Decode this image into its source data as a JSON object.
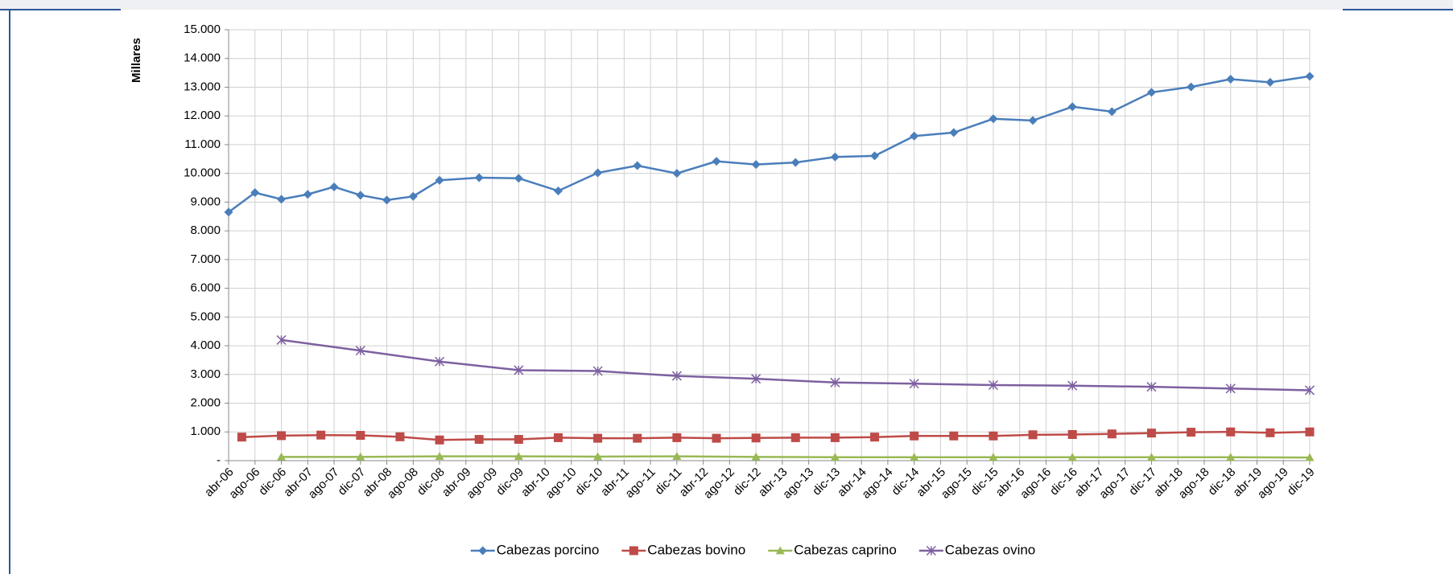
{
  "chart_data": {
    "type": "line",
    "y_label": "Millares",
    "grid": true,
    "legend": "bottom",
    "xlim": [
      "2006-04",
      "2019-12"
    ],
    "xticks": [
      {
        "value": "2006-04",
        "label": "abr-06"
      },
      {
        "value": "2006-08",
        "label": "ago-06"
      },
      {
        "value": "2006-12",
        "label": "dic-06"
      },
      {
        "value": "2007-04",
        "label": "abr-07"
      },
      {
        "value": "2007-08",
        "label": "ago-07"
      },
      {
        "value": "2007-12",
        "label": "dic-07"
      },
      {
        "value": "2008-04",
        "label": "abr-08"
      },
      {
        "value": "2008-08",
        "label": "ago-08"
      },
      {
        "value": "2008-12",
        "label": "dic-08"
      },
      {
        "value": "2009-04",
        "label": "abr-09"
      },
      {
        "value": "2009-08",
        "label": "ago-09"
      },
      {
        "value": "2009-12",
        "label": "dic-09"
      },
      {
        "value": "2010-04",
        "label": "abr-10"
      },
      {
        "value": "2010-08",
        "label": "ago-10"
      },
      {
        "value": "2010-12",
        "label": "dic-10"
      },
      {
        "value": "2011-04",
        "label": "abr-11"
      },
      {
        "value": "2011-08",
        "label": "ago-11"
      },
      {
        "value": "2011-12",
        "label": "dic-11"
      },
      {
        "value": "2012-04",
        "label": "abr-12"
      },
      {
        "value": "2012-08",
        "label": "ago-12"
      },
      {
        "value": "2012-12",
        "label": "dic-12"
      },
      {
        "value": "2013-04",
        "label": "abr-13"
      },
      {
        "value": "2013-08",
        "label": "ago-13"
      },
      {
        "value": "2013-12",
        "label": "dic-13"
      },
      {
        "value": "2014-04",
        "label": "abr-14"
      },
      {
        "value": "2014-08",
        "label": "ago-14"
      },
      {
        "value": "2014-12",
        "label": "dic-14"
      },
      {
        "value": "2015-04",
        "label": "abr-15"
      },
      {
        "value": "2015-08",
        "label": "ago-15"
      },
      {
        "value": "2015-12",
        "label": "dic-15"
      },
      {
        "value": "2016-04",
        "label": "abr-16"
      },
      {
        "value": "2016-08",
        "label": "ago-16"
      },
      {
        "value": "2016-12",
        "label": "dic-16"
      },
      {
        "value": "2017-04",
        "label": "abr-17"
      },
      {
        "value": "2017-08",
        "label": "ago-17"
      },
      {
        "value": "2017-12",
        "label": "dic-17"
      },
      {
        "value": "2018-04",
        "label": "abr-18"
      },
      {
        "value": "2018-08",
        "label": "ago-18"
      },
      {
        "value": "2018-12",
        "label": "dic-18"
      },
      {
        "value": "2019-04",
        "label": "abr-19"
      },
      {
        "value": "2019-08",
        "label": "ago-19"
      },
      {
        "value": "2019-12",
        "label": "dic-19"
      }
    ],
    "ylim": [
      0,
      15000
    ],
    "yticks": [
      {
        "value": 0,
        "label": "-"
      },
      {
        "value": 1000,
        "label": "1.000"
      },
      {
        "value": 2000,
        "label": "2.000"
      },
      {
        "value": 3000,
        "label": "3.000"
      },
      {
        "value": 4000,
        "label": "4.000"
      },
      {
        "value": 5000,
        "label": "5.000"
      },
      {
        "value": 6000,
        "label": "6.000"
      },
      {
        "value": 7000,
        "label": "7.000"
      },
      {
        "value": 8000,
        "label": "8.000"
      },
      {
        "value": 9000,
        "label": "9.000"
      },
      {
        "value": 10000,
        "label": "10.000"
      },
      {
        "value": 11000,
        "label": "11.000"
      },
      {
        "value": 12000,
        "label": "12.000"
      },
      {
        "value": 13000,
        "label": "13.000"
      },
      {
        "value": 14000,
        "label": "14.000"
      },
      {
        "value": 15000,
        "label": "15.000"
      }
    ],
    "series": [
      {
        "name": "Cabezas porcino",
        "color": "#4a7ebb",
        "marker": "diamond",
        "x": [
          "2006-04",
          "2006-08",
          "2006-12",
          "2007-04",
          "2007-08",
          "2007-12",
          "2008-04",
          "2008-08",
          "2008-12",
          "2009-06",
          "2009-12",
          "2010-06",
          "2010-12",
          "2011-06",
          "2011-12",
          "2012-06",
          "2012-12",
          "2013-06",
          "2013-12",
          "2014-06",
          "2014-12",
          "2015-06",
          "2015-12",
          "2016-06",
          "2016-12",
          "2017-06",
          "2017-12",
          "2018-06",
          "2018-12",
          "2019-06",
          "2019-12"
        ],
        "values": [
          8650,
          9330,
          9100,
          9270,
          9530,
          9240,
          9070,
          9200,
          9760,
          9850,
          9830,
          9390,
          10020,
          10270,
          10000,
          10420,
          10310,
          10380,
          10570,
          10610,
          11300,
          11420,
          11900,
          11840,
          12320,
          12150,
          12820,
          13010,
          13280,
          13170,
          13380
        ]
      },
      {
        "name": "Cabezas bovino",
        "color": "#be4b48",
        "marker": "square",
        "x": [
          "2006-06",
          "2006-12",
          "2007-06",
          "2007-12",
          "2008-06",
          "2008-12",
          "2009-06",
          "2009-12",
          "2010-06",
          "2010-12",
          "2011-06",
          "2011-12",
          "2012-06",
          "2012-12",
          "2013-06",
          "2013-12",
          "2014-06",
          "2014-12",
          "2015-06",
          "2015-12",
          "2016-06",
          "2016-12",
          "2017-06",
          "2017-12",
          "2018-06",
          "2018-12",
          "2019-06",
          "2019-12"
        ],
        "values": [
          820,
          870,
          890,
          880,
          830,
          720,
          740,
          740,
          800,
          780,
          780,
          800,
          780,
          790,
          800,
          800,
          820,
          860,
          860,
          860,
          900,
          910,
          930,
          960,
          990,
          1000,
          970,
          1000
        ]
      },
      {
        "name": "Cabezas caprino",
        "color": "#98b954",
        "marker": "triangle",
        "x": [
          "2006-12",
          "2007-12",
          "2008-12",
          "2009-12",
          "2010-12",
          "2011-12",
          "2012-12",
          "2013-12",
          "2014-12",
          "2015-12",
          "2016-12",
          "2017-12",
          "2018-12",
          "2019-12"
        ],
        "values": [
          130,
          130,
          150,
          150,
          140,
          150,
          130,
          120,
          120,
          120,
          120,
          120,
          120,
          110
        ]
      },
      {
        "name": "Cabezas ovino",
        "color": "#7d60a0",
        "marker": "star",
        "x": [
          "2006-12",
          "2007-12",
          "2008-12",
          "2009-12",
          "2010-12",
          "2011-12",
          "2012-12",
          "2013-12",
          "2014-12",
          "2015-12",
          "2016-12",
          "2017-12",
          "2018-12",
          "2019-12"
        ],
        "values": [
          4200,
          3830,
          3450,
          3150,
          3120,
          2950,
          2850,
          2720,
          2680,
          2630,
          2610,
          2570,
          2510,
          2450
        ]
      }
    ]
  }
}
